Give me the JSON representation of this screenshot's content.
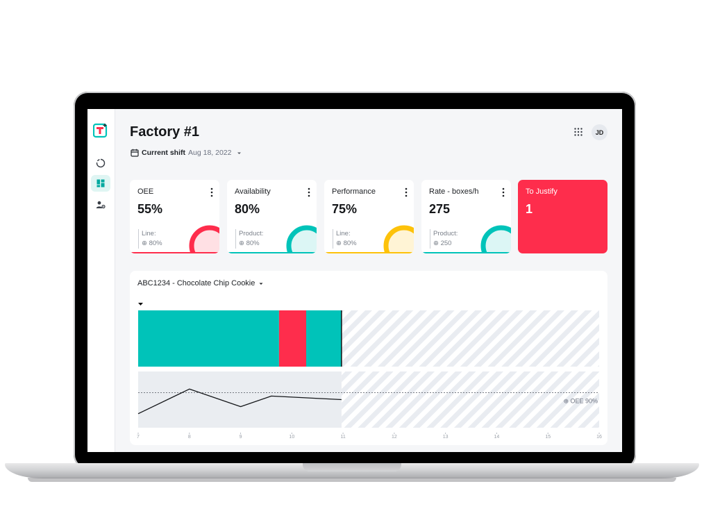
{
  "header": {
    "title": "Factory #1",
    "shift_label": "Current shift",
    "shift_date": "Aug 18, 2022",
    "avatar": "JD"
  },
  "sidebar": {
    "items": [
      {
        "icon": "donut-chart-icon",
        "active": false
      },
      {
        "icon": "dashboard-icon",
        "active": true
      },
      {
        "icon": "user-settings-icon",
        "active": false
      }
    ]
  },
  "colors": {
    "teal": "#00c3b9",
    "red": "#fe2d4c",
    "yellow": "#fdc20a",
    "bg": "#f5f6f8"
  },
  "kpis": [
    {
      "name": "OEE",
      "value": "55%",
      "sub_label": "Line:",
      "target": "⊕ 80%",
      "color": "#fe2d4c",
      "fill": "#ffe0e4"
    },
    {
      "name": "Availability",
      "value": "80%",
      "sub_label": "Product:",
      "target": "⊕ 80%",
      "color": "#00c3b9",
      "fill": "#dcf6f5"
    },
    {
      "name": "Performance",
      "value": "75%",
      "sub_label": "Line:",
      "target": "⊕ 80%",
      "color": "#fdc20a",
      "fill": "#fff4d5"
    },
    {
      "name": "Rate - boxes/h",
      "value": "275",
      "sub_label": "Product:",
      "target": "⊕ 250",
      "color": "#00c3b9",
      "fill": "#dcf6f5"
    }
  ],
  "justify": {
    "name": "To Justify",
    "value": "1"
  },
  "product": {
    "label": "ABC1234 - Chocolate Chip Cookie"
  },
  "timeline": {
    "hours": [
      "7",
      "8",
      "9",
      "10",
      "11",
      "12",
      "13",
      "14",
      "15",
      "16"
    ],
    "segments": [
      {
        "from": 7.0,
        "to": 9.75,
        "state": "running"
      },
      {
        "from": 9.75,
        "to": 10.28,
        "state": "stopped"
      },
      {
        "from": 10.28,
        "to": 10.97,
        "state": "running"
      }
    ],
    "now": 10.97,
    "oee_line": [
      {
        "t": 7.0,
        "v": 78
      },
      {
        "t": 8.0,
        "v": 92
      },
      {
        "t": 9.0,
        "v": 82
      },
      {
        "t": 9.6,
        "v": 88
      },
      {
        "t": 10.97,
        "v": 86
      }
    ],
    "oee_range": [
      70,
      102
    ],
    "target_value": 90,
    "target_label": "⊕ OEE 90%"
  }
}
